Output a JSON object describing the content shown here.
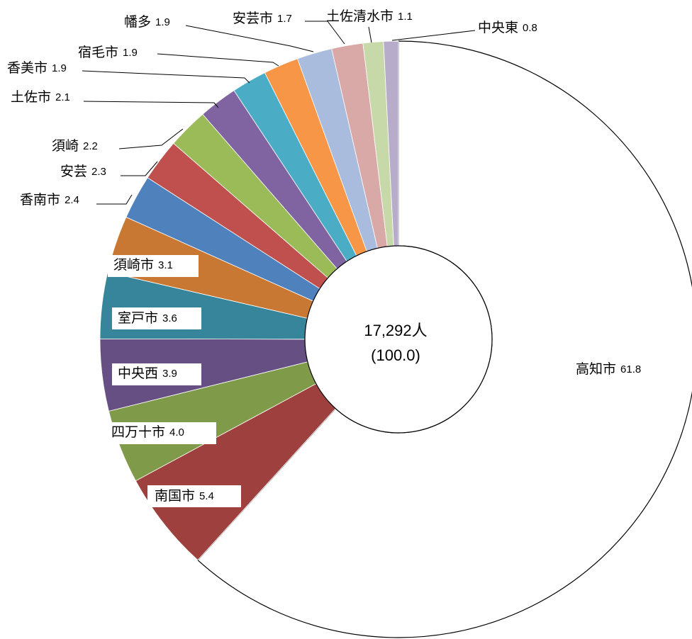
{
  "chart_data": {
    "type": "donut",
    "center_label": "17,292人",
    "center_sublabel": "(100.0)",
    "categories": [
      "高知市",
      "南国市",
      "四万十市",
      "中央西",
      "室戸市",
      "須崎市",
      "香南市",
      "安芸",
      "須崎",
      "土佐市",
      "香美市",
      "宿毛市",
      "幡多",
      "安芸市",
      "土佐清水市",
      "中央東"
    ],
    "values": [
      61.8,
      5.4,
      4.0,
      3.9,
      3.6,
      3.1,
      2.4,
      2.3,
      2.2,
      2.1,
      1.9,
      1.9,
      1.9,
      1.7,
      1.1,
      0.8
    ],
    "value_labels": [
      "61.8",
      "5.4",
      "4.0",
      "3.9",
      "3.6",
      "3.1",
      "2.4",
      "2.3",
      "2.2",
      "2.1",
      "1.9",
      "1.9",
      "1.9",
      "1.7",
      "1.1",
      "0.8"
    ],
    "colors": [
      "#ffffff",
      "#9e413e",
      "#7f9a48",
      "#664f83",
      "#37859a",
      "#c97834",
      "#4f81bd",
      "#c0504d",
      "#9bbb59",
      "#8064a2",
      "#4bacc6",
      "#f79646",
      "#a9bcdd",
      "#d9a9a8",
      "#c8d9a9",
      "#b7adcb"
    ]
  }
}
